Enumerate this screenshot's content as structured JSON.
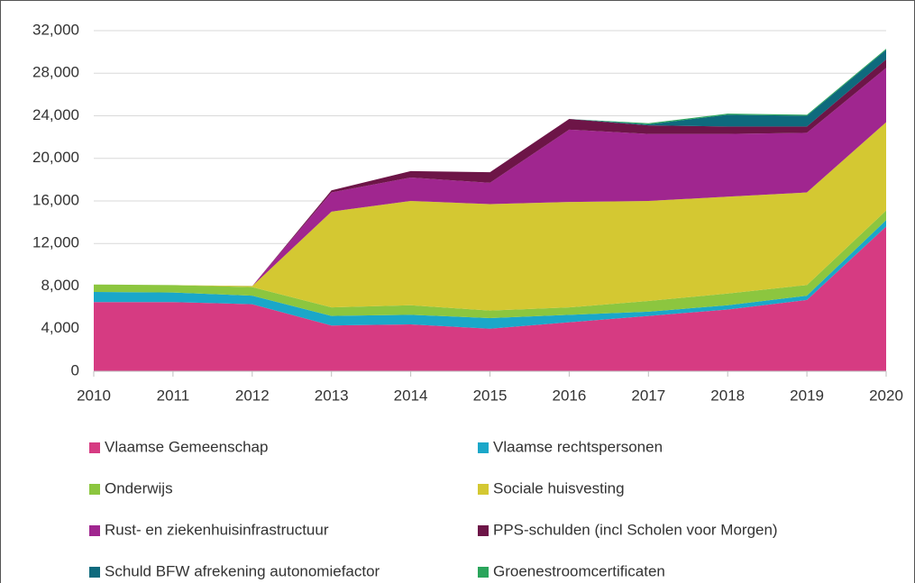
{
  "chart_data": {
    "type": "stacked_area",
    "categories": [
      "2010",
      "2011",
      "2012",
      "2013",
      "2014",
      "2015",
      "2016",
      "2017",
      "2018",
      "2019",
      "2020"
    ],
    "series": [
      {
        "name": "Vlaamse Gemeenschap",
        "color": "#d63b82",
        "values": [
          6500,
          6500,
          6300,
          4300,
          4400,
          4000,
          4600,
          5200,
          5800,
          6700,
          13600
        ]
      },
      {
        "name": "Vlaamse rechtspersonen",
        "color": "#1aa7c9",
        "values": [
          950,
          900,
          800,
          900,
          900,
          1000,
          700,
          400,
          400,
          400,
          600
        ]
      },
      {
        "name": "Onderwijs",
        "color": "#8cc63f",
        "values": [
          700,
          700,
          800,
          800,
          900,
          700,
          700,
          1000,
          1100,
          1000,
          900
        ]
      },
      {
        "name": "Sociale huisvesting",
        "color": "#d4c832",
        "values": [
          0,
          0,
          100,
          9000,
          9800,
          10000,
          9900,
          9400,
          9100,
          8700,
          8300
        ]
      },
      {
        "name": "Rust- en ziekenhuisinfrastructuur",
        "color": "#a0268f",
        "values": [
          0,
          0,
          0,
          1800,
          2200,
          2000,
          6800,
          6300,
          5900,
          5600,
          5100
        ]
      },
      {
        "name": "PPS-schulden (incl Scholen voor Morgen)",
        "color": "#6d1547",
        "values": [
          0,
          0,
          0,
          200,
          600,
          1000,
          1000,
          800,
          700,
          600,
          800
        ]
      },
      {
        "name": "Schuld BFW afrekening autonomiefactor",
        "color": "#0e6a7d",
        "values": [
          0,
          0,
          0,
          0,
          0,
          0,
          0,
          100,
          1100,
          1000,
          900
        ]
      },
      {
        "name": "Groenestroomcertificaten",
        "color": "#2aa55b",
        "values": [
          0,
          0,
          0,
          0,
          0,
          0,
          0,
          100,
          100,
          100,
          100
        ]
      }
    ],
    "ylim": [
      0,
      32000
    ],
    "yticks": [
      {
        "value": 0,
        "label": "0"
      },
      {
        "value": 4000,
        "label": "4,000"
      },
      {
        "value": 8000,
        "label": "8,000"
      },
      {
        "value": 12000,
        "label": "12,000"
      },
      {
        "value": 16000,
        "label": "16,000"
      },
      {
        "value": 20000,
        "label": "20,000"
      },
      {
        "value": 24000,
        "label": "24,000"
      },
      {
        "value": 28000,
        "label": "28,000"
      },
      {
        "value": 32000,
        "label": "32,000"
      }
    ],
    "grid": true,
    "legend": "bottom"
  }
}
